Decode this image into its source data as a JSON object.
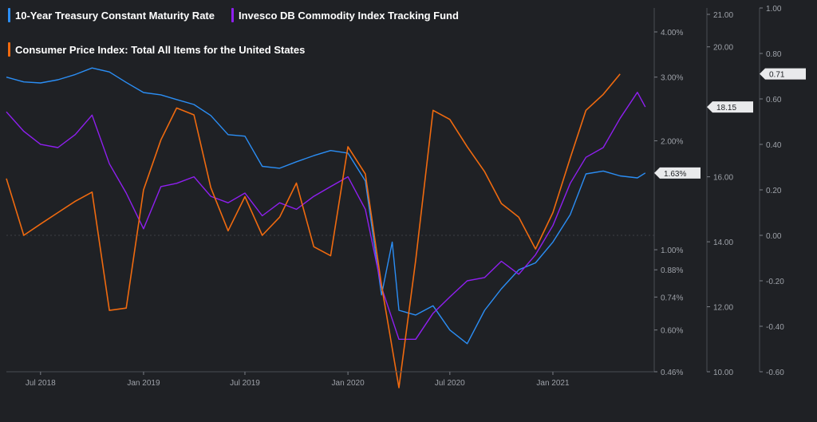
{
  "chart_data": {
    "type": "line",
    "grid": false,
    "legend_position": "top-left",
    "x_ticks": [
      "Jul 2018",
      "Jan 2019",
      "Jul 2019",
      "Jan 2020",
      "Jul 2020",
      "Jan 2021"
    ],
    "x_range": [
      "2018-05-01",
      "2021-07-01"
    ],
    "axes": {
      "treasury": {
        "scale": "log",
        "range": [
          0.46,
          4.0
        ],
        "ticks": [
          "4.00%",
          "3.00%",
          "2.00%",
          "1.00%",
          "0.88%",
          "0.74%",
          "0.60%",
          "0.46%"
        ]
      },
      "fund": {
        "range": [
          10.0,
          21.0
        ],
        "ticks": [
          "21.00",
          "20.00",
          "16.00",
          "14.00",
          "12.00",
          "10.00"
        ]
      },
      "cpi": {
        "range": [
          -0.6,
          1.0
        ],
        "ticks": [
          "1.00",
          "0.80",
          "0.60",
          "0.40",
          "0.20",
          "0.00",
          "-0.20",
          "-0.40",
          "-0.60"
        ]
      }
    },
    "series": [
      {
        "name": "10-Year Treasury Constant Maturity Rate",
        "color": "#2b8ef5",
        "axis": "treasury",
        "last_value_label": "1.63%",
        "points": [
          [
            "2018-05-01",
            3.0
          ],
          [
            "2018-06-01",
            2.91
          ],
          [
            "2018-07-01",
            2.89
          ],
          [
            "2018-08-01",
            2.95
          ],
          [
            "2018-09-01",
            3.05
          ],
          [
            "2018-10-01",
            3.18
          ],
          [
            "2018-11-01",
            3.1
          ],
          [
            "2018-12-01",
            2.9
          ],
          [
            "2019-01-01",
            2.72
          ],
          [
            "2019-02-01",
            2.68
          ],
          [
            "2019-03-01",
            2.6
          ],
          [
            "2019-04-01",
            2.52
          ],
          [
            "2019-05-01",
            2.35
          ],
          [
            "2019-06-01",
            2.08
          ],
          [
            "2019-07-01",
            2.06
          ],
          [
            "2019-08-01",
            1.7
          ],
          [
            "2019-09-01",
            1.68
          ],
          [
            "2019-10-01",
            1.75
          ],
          [
            "2019-11-01",
            1.82
          ],
          [
            "2019-12-01",
            1.88
          ],
          [
            "2020-01-01",
            1.85
          ],
          [
            "2020-02-01",
            1.55
          ],
          [
            "2020-03-01",
            0.75
          ],
          [
            "2020-03-20",
            1.05
          ],
          [
            "2020-04-01",
            0.68
          ],
          [
            "2020-05-01",
            0.66
          ],
          [
            "2020-06-01",
            0.7
          ],
          [
            "2020-07-01",
            0.6
          ],
          [
            "2020-08-01",
            0.55
          ],
          [
            "2020-09-01",
            0.68
          ],
          [
            "2020-10-01",
            0.78
          ],
          [
            "2020-11-01",
            0.88
          ],
          [
            "2020-12-01",
            0.92
          ],
          [
            "2021-01-01",
            1.05
          ],
          [
            "2021-02-01",
            1.25
          ],
          [
            "2021-03-01",
            1.62
          ],
          [
            "2021-04-01",
            1.65
          ],
          [
            "2021-05-01",
            1.6
          ],
          [
            "2021-06-01",
            1.58
          ],
          [
            "2021-06-15",
            1.63
          ]
        ]
      },
      {
        "name": "Invesco DB Commodity Index Tracking Fund",
        "color": "#8f1ff0",
        "axis": "fund",
        "last_value_label": "18.15",
        "points": [
          [
            "2018-05-01",
            18.0
          ],
          [
            "2018-06-01",
            17.4
          ],
          [
            "2018-07-01",
            17.0
          ],
          [
            "2018-08-01",
            16.9
          ],
          [
            "2018-09-01",
            17.3
          ],
          [
            "2018-10-01",
            17.9
          ],
          [
            "2018-11-01",
            16.4
          ],
          [
            "2018-12-01",
            15.5
          ],
          [
            "2019-01-01",
            14.4
          ],
          [
            "2019-02-01",
            15.7
          ],
          [
            "2019-03-01",
            15.8
          ],
          [
            "2019-04-01",
            16.0
          ],
          [
            "2019-05-01",
            15.4
          ],
          [
            "2019-06-01",
            15.2
          ],
          [
            "2019-07-01",
            15.5
          ],
          [
            "2019-08-01",
            14.8
          ],
          [
            "2019-09-01",
            15.2
          ],
          [
            "2019-10-01",
            15.0
          ],
          [
            "2019-11-01",
            15.4
          ],
          [
            "2019-12-01",
            15.7
          ],
          [
            "2020-01-01",
            16.0
          ],
          [
            "2020-02-01",
            15.0
          ],
          [
            "2020-03-01",
            12.6
          ],
          [
            "2020-04-01",
            11.0
          ],
          [
            "2020-05-01",
            11.0
          ],
          [
            "2020-06-01",
            11.8
          ],
          [
            "2020-07-01",
            12.3
          ],
          [
            "2020-08-01",
            12.8
          ],
          [
            "2020-09-01",
            12.9
          ],
          [
            "2020-10-01",
            13.4
          ],
          [
            "2020-11-01",
            13.0
          ],
          [
            "2020-12-01",
            13.6
          ],
          [
            "2021-01-01",
            14.5
          ],
          [
            "2021-02-01",
            15.8
          ],
          [
            "2021-03-01",
            16.6
          ],
          [
            "2021-04-01",
            16.9
          ],
          [
            "2021-05-01",
            17.8
          ],
          [
            "2021-06-01",
            18.6
          ],
          [
            "2021-06-15",
            18.15
          ]
        ]
      },
      {
        "name": "Consumer Price Index: Total All Items for the United States",
        "color": "#f06a0f",
        "axis": "cpi",
        "last_value_label": "0.71",
        "points": [
          [
            "2018-05-01",
            0.25
          ],
          [
            "2018-06-01",
            0.0
          ],
          [
            "2018-07-01",
            0.05
          ],
          [
            "2018-08-01",
            0.1
          ],
          [
            "2018-09-01",
            0.15
          ],
          [
            "2018-10-01",
            0.19
          ],
          [
            "2018-11-01",
            -0.33
          ],
          [
            "2018-12-01",
            -0.32
          ],
          [
            "2019-01-01",
            0.2
          ],
          [
            "2019-02-01",
            0.42
          ],
          [
            "2019-03-01",
            0.56
          ],
          [
            "2019-04-01",
            0.53
          ],
          [
            "2019-05-01",
            0.21
          ],
          [
            "2019-06-01",
            0.02
          ],
          [
            "2019-07-01",
            0.17
          ],
          [
            "2019-08-01",
            0.0
          ],
          [
            "2019-09-01",
            0.08
          ],
          [
            "2019-10-01",
            0.23
          ],
          [
            "2019-11-01",
            -0.05
          ],
          [
            "2019-12-01",
            -0.09
          ],
          [
            "2020-01-01",
            0.39
          ],
          [
            "2020-02-01",
            0.27
          ],
          [
            "2020-03-01",
            -0.22
          ],
          [
            "2020-04-01",
            -0.67
          ],
          [
            "2020-05-01",
            -0.11
          ],
          [
            "2020-06-01",
            0.55
          ],
          [
            "2020-07-01",
            0.51
          ],
          [
            "2020-08-01",
            0.39
          ],
          [
            "2020-09-01",
            0.28
          ],
          [
            "2020-10-01",
            0.14
          ],
          [
            "2020-11-01",
            0.08
          ],
          [
            "2020-12-01",
            -0.06
          ],
          [
            "2021-01-01",
            0.1
          ],
          [
            "2021-02-01",
            0.34
          ],
          [
            "2021-03-01",
            0.55
          ],
          [
            "2021-04-01",
            0.62
          ],
          [
            "2021-05-01",
            0.71
          ]
        ]
      }
    ]
  }
}
